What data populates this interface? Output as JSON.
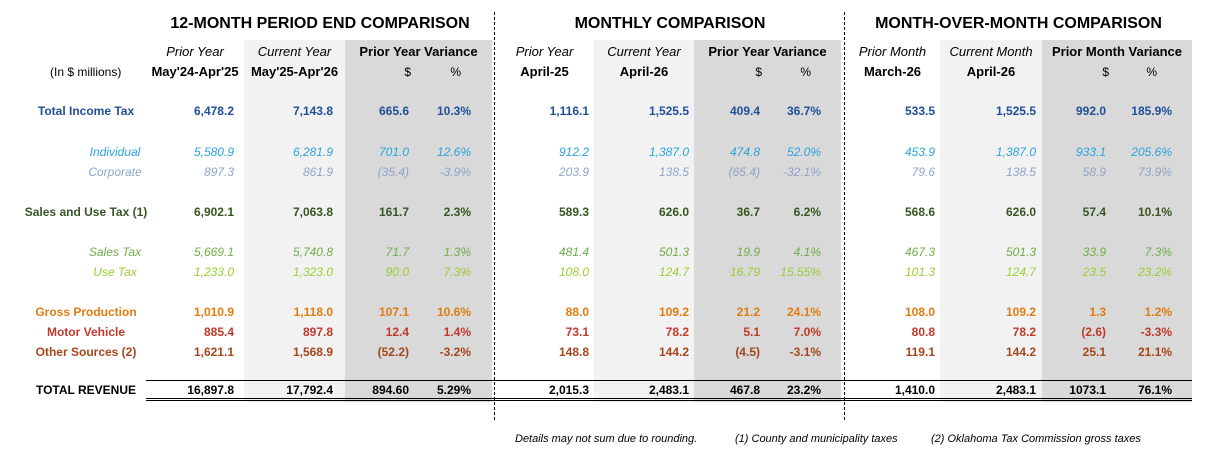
{
  "titles": {
    "period": "12-MONTH PERIOD END COMPARISON",
    "monthly": "MONTHLY COMPARISON",
    "mom": "MONTH-OVER-MONTH COMPARISON"
  },
  "headers": {
    "units": "(In $ millions)",
    "p_prior_label": "Prior Year",
    "p_prior_range": "May'24-Apr'25",
    "p_curr_label": "Current Year",
    "p_curr_range": "May'25-Apr'26",
    "p_var_label": "Prior Year Variance",
    "m_prior_label": "Prior Year",
    "m_prior_month": "April-25",
    "m_curr_label": "Current Year",
    "m_curr_month": "April-26",
    "m_var_label": "Prior Year Variance",
    "o_prior_label": "Prior Month",
    "o_prior_month": "March-26",
    "o_curr_label": "Current Month",
    "o_curr_month": "April-26",
    "o_var_label": "Prior Month Variance",
    "dollar": "$",
    "pct": "%"
  },
  "colors": {
    "income": "#1f4e9a",
    "individual": "#29a3dd",
    "corporate": "#8ea4c8",
    "sales_use": "#375623",
    "sales": "#70ad47",
    "use": "#9acd32",
    "gross": "#e07b10",
    "motor": "#c0392b",
    "other": "#a5461c",
    "total": "#000000"
  },
  "rows": [
    {
      "key": "income",
      "label": "Total Income Tax",
      "style": "bold",
      "v": [
        "6,478.2",
        "7,143.8",
        "665.6",
        "10.3%",
        "1,116.1",
        "1,525.5",
        "409.4",
        "36.7%",
        "533.5",
        "1,525.5",
        "992.0",
        "185.9%"
      ]
    },
    {
      "key": "individual",
      "label": "Individual",
      "style": "italic",
      "v": [
        "5,580.9",
        "6,281.9",
        "701.0",
        "12.6%",
        "912.2",
        "1,387.0",
        "474.8",
        "52.0%",
        "453.9",
        "1,387.0",
        "933.1",
        "205.6%"
      ]
    },
    {
      "key": "corporate",
      "label": "Corporate",
      "style": "italic",
      "v": [
        "897.3",
        "861.9",
        "(35.4)",
        "-3.9%",
        "203.9",
        "138.5",
        "(65.4)",
        "-32.1%",
        "79.6",
        "138.5",
        "58.9",
        "73.9%"
      ]
    },
    {
      "key": "sales_use",
      "label": "Sales and Use Tax (1)",
      "style": "bold",
      "v": [
        "6,902.1",
        "7,063.8",
        "161.7",
        "2.3%",
        "589.3",
        "626.0",
        "36.7",
        "6.2%",
        "568.6",
        "626.0",
        "57.4",
        "10.1%"
      ]
    },
    {
      "key": "sales",
      "label": "Sales Tax",
      "style": "italic",
      "v": [
        "5,669.1",
        "5,740.8",
        "71.7",
        "1.3%",
        "481.4",
        "501.3",
        "19.9",
        "4.1%",
        "467.3",
        "501.3",
        "33.9",
        "7.3%"
      ]
    },
    {
      "key": "use",
      "label": "Use Tax",
      "style": "italic",
      "v": [
        "1,233.0",
        "1,323.0",
        "90.0",
        "7.3%",
        "108.0",
        "124.7",
        "16.79",
        "15.55%",
        "101.3",
        "124.7",
        "23.5",
        "23.2%"
      ]
    },
    {
      "key": "gross",
      "label": "Gross Production",
      "style": "bold",
      "v": [
        "1,010.9",
        "1,118.0",
        "107.1",
        "10.6%",
        "88.0",
        "109.2",
        "21.2",
        "24.1%",
        "108.0",
        "109.2",
        "1.3",
        "1.2%"
      ]
    },
    {
      "key": "motor",
      "label": "Motor Vehicle",
      "style": "bold",
      "v": [
        "885.4",
        "897.8",
        "12.4",
        "1.4%",
        "73.1",
        "78.2",
        "5.1",
        "7.0%",
        "80.8",
        "78.2",
        "(2.6)",
        "-3.3%"
      ]
    },
    {
      "key": "other",
      "label": "Other Sources (2)",
      "style": "bold",
      "v": [
        "1,621.1",
        "1,568.9",
        "(52.2)",
        "-3.2%",
        "148.8",
        "144.2",
        "(4.5)",
        "-3.1%",
        "119.1",
        "144.2",
        "25.1",
        "21.1%"
      ]
    },
    {
      "key": "total",
      "label": "TOTAL REVENUE",
      "style": "bold",
      "v": [
        "16,897.8",
        "17,792.4",
        "894.60",
        "5.29%",
        "2,015.3",
        "2,483.1",
        "467.8",
        "23.2%",
        "1,410.0",
        "2,483.1",
        "1073.1",
        "76.1%"
      ]
    }
  ],
  "footnotes": {
    "rounding": "Details may not sum due to rounding.",
    "note1": "(1) County and municipality taxes",
    "note2": "(2) Oklahoma Tax Commission gross taxes"
  }
}
